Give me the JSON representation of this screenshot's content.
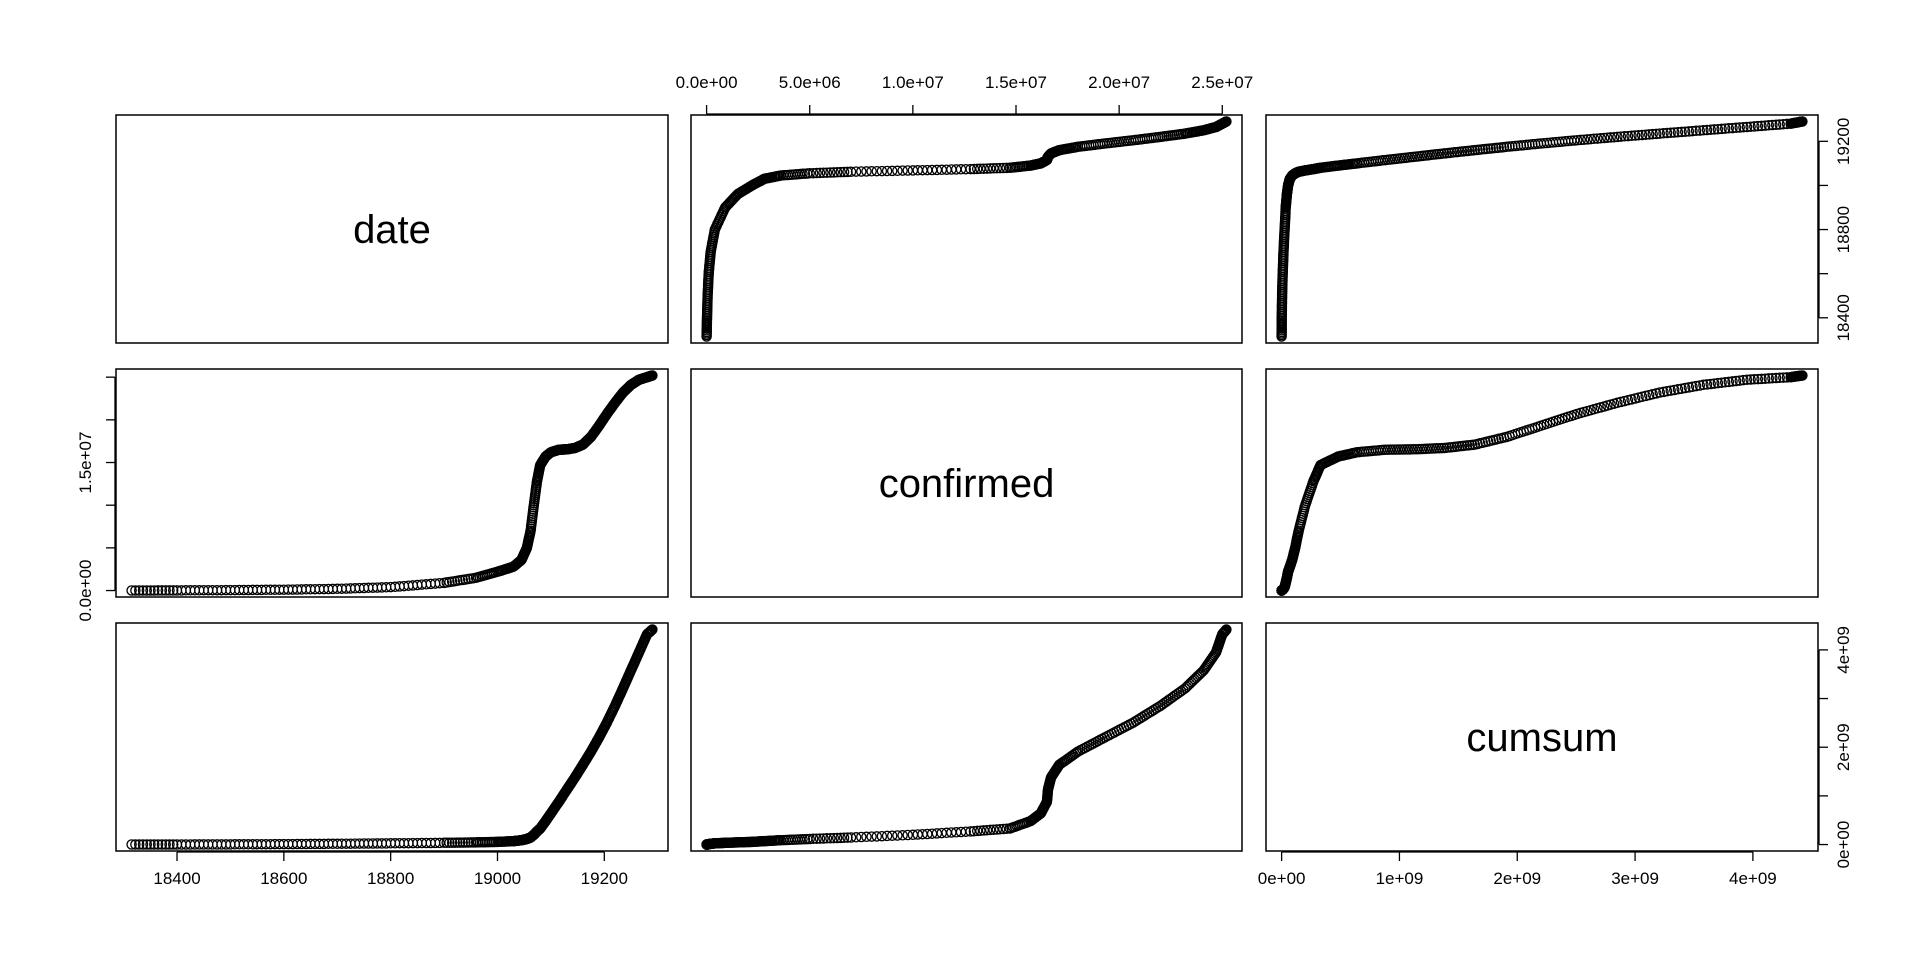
{
  "chart_data": {
    "type": "scatter",
    "kind": "pairs",
    "variables": [
      "date",
      "confirmed",
      "cumsum"
    ],
    "axes": {
      "date": {
        "range": [
          18315,
          19290
        ],
        "ticks": [
          18400,
          18600,
          18800,
          19000,
          19200
        ],
        "tick_labels": [
          "18400",
          "18600",
          "18800",
          "19000",
          "19200"
        ],
        "right_ticks": [
          18400,
          18600,
          18800,
          19000,
          19200
        ],
        "right_tick_labels": [
          "18400",
          "18800",
          "19200"
        ],
        "right_labeled_values": [
          18400,
          18800,
          19200
        ]
      },
      "confirmed": {
        "range": [
          0,
          25200000
        ],
        "top_ticks": [
          0,
          5000000,
          10000000,
          15000000,
          20000000,
          25000000
        ],
        "top_tick_labels": [
          "0.0e+00",
          "5.0e+06",
          "1.0e+07",
          "1.5e+07",
          "2.0e+07",
          "2.5e+07"
        ],
        "left_ticks": [
          0,
          5000000,
          10000000,
          15000000,
          20000000,
          25000000
        ],
        "left_tick_labels": [
          "0.0e+00",
          "1.5e+07"
        ],
        "left_labeled_values": [
          0,
          15000000
        ]
      },
      "cumsum": {
        "range": [
          0,
          4420000000
        ],
        "bottom_ticks": [
          0,
          1000000000,
          2000000000,
          3000000000,
          4000000000
        ],
        "bottom_tick_labels": [
          "0e+00",
          "1e+09",
          "2e+09",
          "3e+09",
          "4e+09"
        ],
        "right_ticks": [
          0,
          1000000000,
          2000000000,
          3000000000,
          4000000000
        ],
        "right_tick_labels": [
          "0e+00",
          "2e+09",
          "4e+09"
        ],
        "right_labeled_values": [
          0,
          2000000000,
          4000000000
        ]
      }
    },
    "series": [
      {
        "x_date": [
          18315,
          18400,
          18500,
          18600,
          18700,
          18800,
          18900,
          18960,
          19000,
          19030,
          19045,
          19055,
          19062,
          19068,
          19074,
          19080,
          19090,
          19100,
          19115,
          19130,
          19145,
          19160,
          19175,
          19190,
          19205,
          19220,
          19235,
          19250,
          19265,
          19280,
          19290
        ],
        "confirmed": [
          0,
          20000,
          50000,
          100000,
          200000,
          400000,
          900000,
          1500000,
          2200000,
          2800000,
          3600000,
          5000000,
          7000000,
          10000000,
          12800000,
          14700000,
          15700000,
          16200000,
          16500000,
          16550000,
          16700000,
          17100000,
          18000000,
          19300000,
          20700000,
          22000000,
          23200000,
          24100000,
          24700000,
          25000000,
          25200000
        ],
        "cumsum": [
          0,
          1000000,
          4000000,
          9000000,
          16000000,
          25000000,
          35000000,
          45000000,
          55000000,
          70000000,
          90000000,
          115000000,
          145000000,
          200000000,
          270000000,
          330000000,
          480000000,
          640000000,
          880000000,
          1130000000,
          1380000000,
          1640000000,
          1910000000,
          2200000000,
          2510000000,
          2850000000,
          3210000000,
          3580000000,
          3950000000,
          4320000000,
          4420000000
        ]
      }
    ]
  }
}
